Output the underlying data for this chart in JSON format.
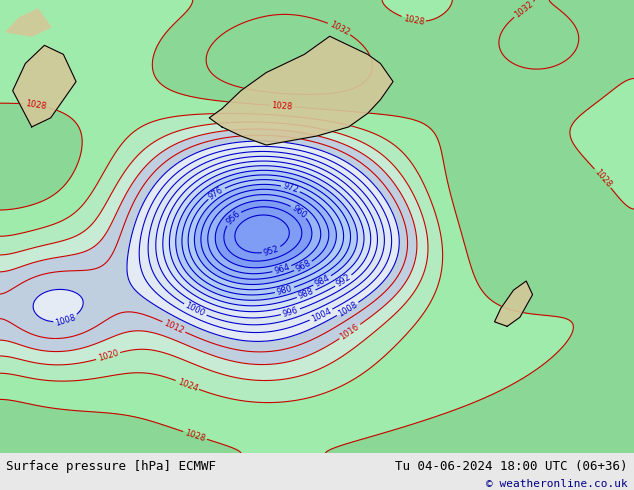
{
  "title_left": "Surface pressure [hPa] ECMWF",
  "title_right": "Tu 04-06-2024 18:00 UTC (06+36)",
  "copyright": "© weatheronline.co.uk",
  "bg_color": "#d0d8e8",
  "map_bg": "#c8d4e8",
  "figsize": [
    6.34,
    4.9
  ],
  "dpi": 100,
  "bottom_bar_color": "#e8e8e8",
  "bottom_bar_height": 0.075,
  "font_size_bottom": 9,
  "font_size_copyright": 8,
  "contour_interval": 4,
  "pressure_min": 948,
  "pressure_max": 1036
}
